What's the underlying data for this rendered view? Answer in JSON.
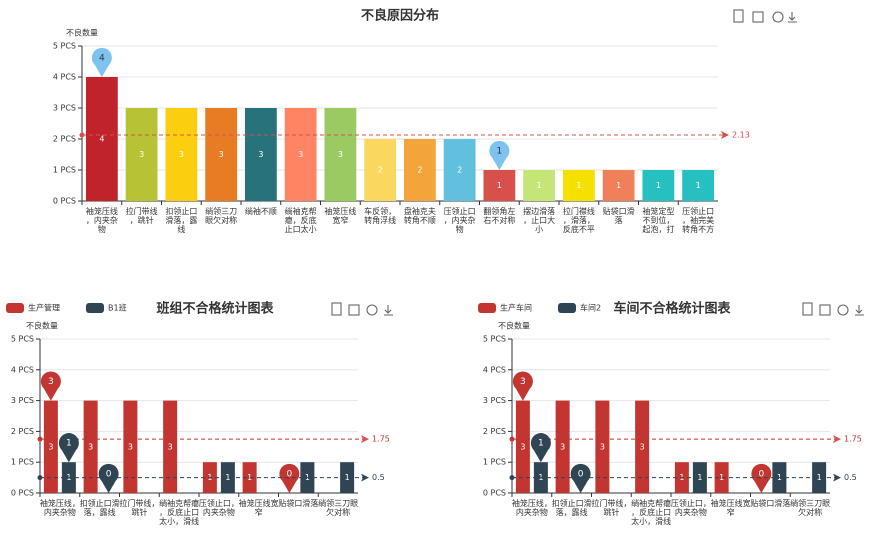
{
  "chart_data": [
    {
      "type": "bar",
      "title": "不良原因分布",
      "y_axis_label": "不良数量",
      "categories": [
        "袖笼压线，内夹杂物",
        "拉门带线，跳针",
        "扣领止口滑落，露线",
        "绱领三刀眼欠对称",
        "绱袖不顺",
        "绱袖克帮瘪，反底止口太小",
        "袖笼压线宽窄",
        "车反领，转角浮线",
        "盘袖克夫转角不顺",
        "压领止口，内夹杂物",
        "翻领角左右不对称",
        "摆边滑落，止口大小",
        "拉门襟线，滑落，反底不平",
        "贴袋口滑落",
        "袖笼定型不到位，起泡，打",
        "压领止口，袖完美转角不方"
      ],
      "series": [
        {
          "values": [
            4,
            3,
            3,
            3,
            3,
            3,
            3,
            2,
            2,
            2,
            1,
            1,
            1,
            1,
            1,
            1
          ],
          "average": 2.13,
          "colors": [
            "#c1232b",
            "#b5c334",
            "#fcce10",
            "#e87c25",
            "#27727b",
            "#fe8463",
            "#9bca63",
            "#fad860",
            "#f3a43b",
            "#60c0dd",
            "#d7504b",
            "#c6e579",
            "#f4e001",
            "#f0805a",
            "#26c0c0",
            "#26c0c0"
          ],
          "pin_color": "#7ec3f0",
          "line_color": "#d7504b"
        }
      ],
      "ylim": [
        0,
        5
      ],
      "yticks": [
        {
          "value": 0,
          "label": "0 PCS"
        },
        {
          "value": 1,
          "label": "1 PCS"
        },
        {
          "value": 2,
          "label": "2 PCS"
        },
        {
          "value": 3,
          "label": "3 PCS"
        },
        {
          "value": 4,
          "label": "4 PCS"
        },
        {
          "value": 5,
          "label": "5 PCS"
        }
      ],
      "grid": true
    },
    {
      "type": "bar",
      "title": "班组不合格统计图表",
      "y_axis_label": "不良数量",
      "categories": [
        "袖笼压线，内夹杂物",
        "扣领止口滑落，露线",
        "拉门带线，跳针",
        "绱袖克帮瘪，反底止口太小，滑线",
        "压领止口，内夹杂物",
        "袖笼压线宽窄",
        "贴袋口滑落",
        "绱领三刀眼欠对称"
      ],
      "series": [
        {
          "name": "生产管理",
          "color": "#c23531",
          "values": [
            3,
            3,
            3,
            3,
            1,
            1,
            0,
            0
          ],
          "average": 1.75
        },
        {
          "name": "B1班",
          "color": "#2f4554",
          "values": [
            1,
            0,
            0,
            0,
            1,
            0,
            1,
            1
          ],
          "average": 0.5
        }
      ],
      "ylim": [
        0,
        5
      ],
      "yticks": [
        {
          "value": 0,
          "label": "0 PCS"
        },
        {
          "value": 1,
          "label": "1 PCS"
        },
        {
          "value": 2,
          "label": "2 PCS"
        },
        {
          "value": 3,
          "label": "3 PCS"
        },
        {
          "value": 4,
          "label": "4 PCS"
        },
        {
          "value": 5,
          "label": "5 PCS"
        }
      ],
      "grid": true
    },
    {
      "type": "bar",
      "title": "车间不合格统计图表",
      "y_axis_label": "不良数量",
      "categories": [
        "袖笼压线，内夹杂物",
        "扣领止口滑落，露线",
        "拉门带线，跳针",
        "绱袖克帮瘪，反底止口太小，滑线",
        "压领止口，内夹杂物",
        "袖笼压线宽窄",
        "贴袋口滑落",
        "绱领三刀眼欠对称"
      ],
      "series": [
        {
          "name": "生产车间",
          "color": "#c23531",
          "values": [
            3,
            3,
            3,
            3,
            1,
            1,
            0,
            0
          ],
          "average": 1.75
        },
        {
          "name": "车间2",
          "color": "#2f4554",
          "values": [
            1,
            0,
            0,
            0,
            1,
            0,
            1,
            1
          ],
          "average": 0.5
        }
      ],
      "ylim": [
        0,
        5
      ],
      "yticks": [
        {
          "value": 0,
          "label": "0 PCS"
        },
        {
          "value": 1,
          "label": "1 PCS"
        },
        {
          "value": 2,
          "label": "2 PCS"
        },
        {
          "value": 3,
          "label": "3 PCS"
        },
        {
          "value": 4,
          "label": "4 PCS"
        },
        {
          "value": 5,
          "label": "5 PCS"
        }
      ],
      "grid": true
    }
  ]
}
